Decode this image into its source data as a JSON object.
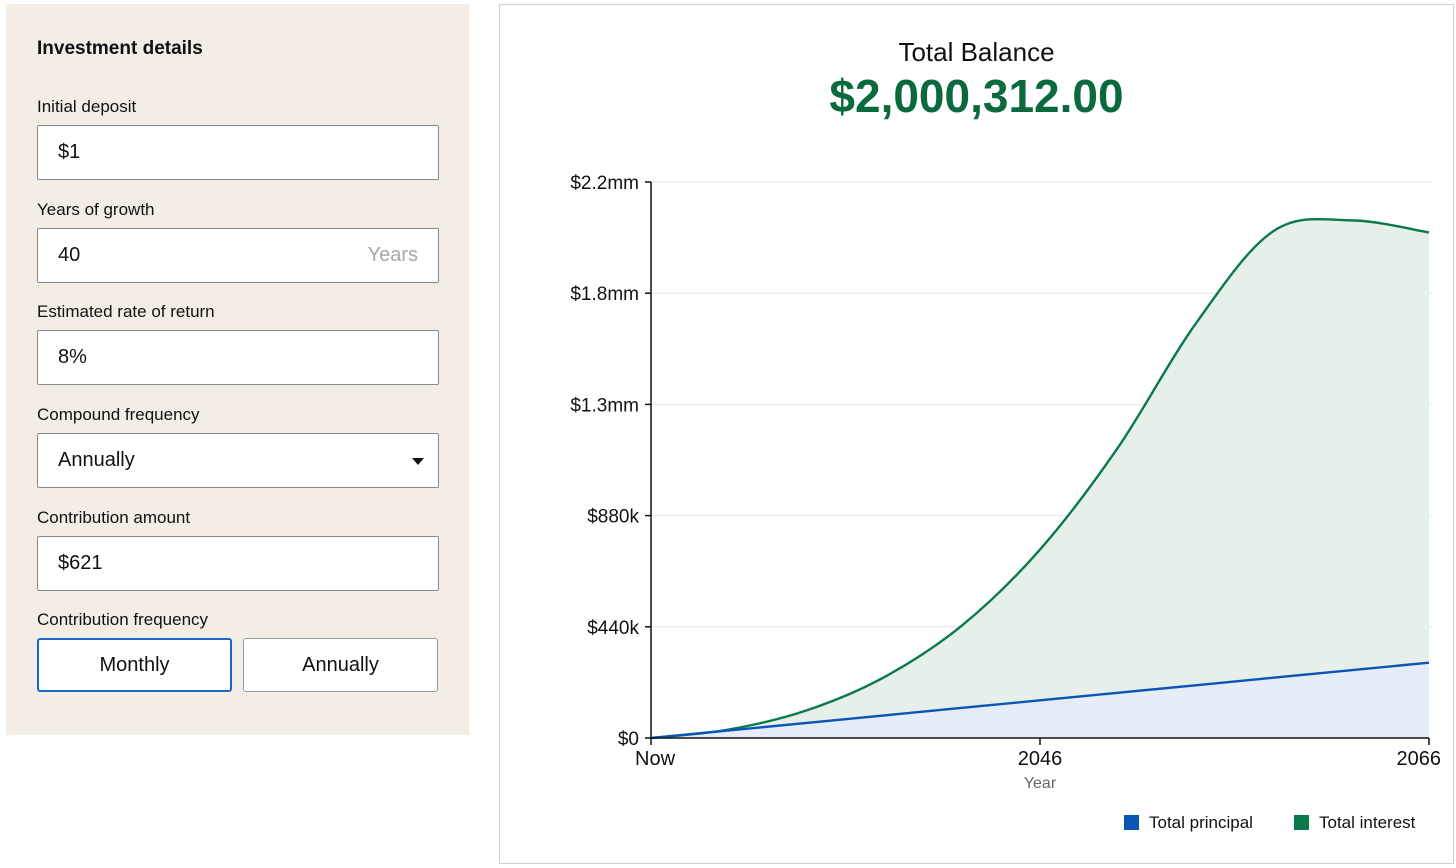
{
  "form": {
    "title": "Investment details",
    "initial_deposit": {
      "label": "Initial deposit",
      "value": "$1"
    },
    "years_of_growth": {
      "label": "Years of growth",
      "value": "40",
      "suffix": "Years"
    },
    "rate_of_return": {
      "label": "Estimated rate of return",
      "value": "8%"
    },
    "compound_frequency": {
      "label": "Compound frequency",
      "value": "Annually"
    },
    "contribution_amount": {
      "label": "Contribution amount",
      "value": "$621"
    },
    "contribution_frequency": {
      "label": "Contribution frequency",
      "options": [
        "Monthly",
        "Annually"
      ],
      "selected": "Monthly"
    }
  },
  "summary": {
    "label": "Total Balance",
    "value": "$2,000,312.00"
  },
  "colors": {
    "principal": "#0b55b5",
    "interest": "#0a7a4a",
    "balance_text": "#0a6a3d",
    "selected_border": "#1a66c9"
  },
  "chart_data": {
    "type": "area",
    "x_start_year": 2026,
    "x_end_year": 2066,
    "xlim": [
      2026,
      2066
    ],
    "ylim": [
      0,
      2200000
    ],
    "x_ticks": [
      {
        "value": 2026,
        "label": "Now"
      },
      {
        "value": 2046,
        "label": "2046"
      },
      {
        "value": 2066,
        "label": "2066"
      }
    ],
    "y_ticks": [
      {
        "value": 0,
        "label": "$0"
      },
      {
        "value": 440000,
        "label": "$440k"
      },
      {
        "value": 880000,
        "label": "$880k"
      },
      {
        "value": 1320000,
        "label": "$1.3mm"
      },
      {
        "value": 1760000,
        "label": "$1.8mm"
      },
      {
        "value": 2200000,
        "label": "$2.2mm"
      }
    ],
    "xlabel": "Year",
    "ylabel": "",
    "grid": true,
    "legend_position": "bottom-right",
    "series": [
      {
        "name": "Total principal",
        "color": "#0b55b5",
        "fill": "#e6edf8",
        "x": [
          2026,
          2030,
          2034,
          2038,
          2042,
          2046,
          2050,
          2054,
          2058,
          2062,
          2066
        ],
        "values": [
          0,
          29809,
          59617,
          89425,
          119233,
          149041,
          178849,
          208657,
          238465,
          268273,
          298081
        ]
      },
      {
        "name": "Total interest",
        "color": "#0a7a4a",
        "fill": "#e6efea",
        "x": [
          2026,
          2030,
          2034,
          2038,
          2042,
          2046,
          2050,
          2054,
          2058,
          2062,
          2066
        ],
        "values": [
          0,
          33580,
          109230,
          241130,
          445930,
          745700,
          1148100,
          1638900,
          2005600,
          2048200,
          2000312
        ],
        "total_balance": [
          0,
          33580,
          109230,
          241130,
          445930,
          745700,
          1148100,
          1638900,
          2005600,
          2048200,
          2000312
        ]
      }
    ]
  }
}
